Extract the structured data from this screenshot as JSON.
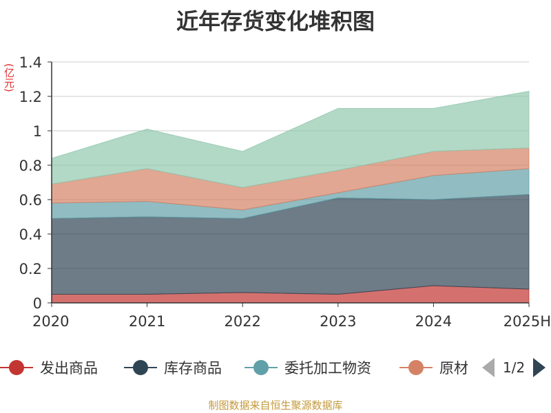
{
  "chart_data": {
    "type": "area",
    "stacked": true,
    "title": "近年存货变化堆积图",
    "unit": "(亿元)",
    "categories": [
      "2020",
      "2021",
      "2022",
      "2023",
      "2024",
      "2025H"
    ],
    "ylim": [
      0,
      1.4
    ],
    "yticks": [
      "0",
      "0.2",
      "0.4",
      "0.6",
      "0.8",
      "1",
      "1.2",
      "1.4"
    ],
    "grid": true,
    "series": [
      {
        "name": "发出商品",
        "color": "#c23531",
        "values": [
          0.05,
          0.05,
          0.06,
          0.05,
          0.1,
          0.08
        ]
      },
      {
        "name": "库存商品",
        "color": "#2f4554",
        "values": [
          0.44,
          0.45,
          0.43,
          0.56,
          0.5,
          0.55
        ]
      },
      {
        "name": "委托加工物资",
        "color": "#61a0a8",
        "values": [
          0.09,
          0.09,
          0.05,
          0.03,
          0.14,
          0.15
        ]
      },
      {
        "name": "原材料",
        "color": "#d48265",
        "values": [
          0.11,
          0.19,
          0.13,
          0.13,
          0.14,
          0.12
        ]
      },
      {
        "name": "",
        "color": "#91c7ae",
        "values": [
          0.15,
          0.23,
          0.21,
          0.36,
          0.25,
          0.33
        ]
      }
    ]
  },
  "legend": {
    "items": [
      {
        "label": "发出商品",
        "color": "#c23531"
      },
      {
        "label": "库存商品",
        "color": "#2f4554"
      },
      {
        "label": "委托加工物资",
        "color": "#61a0a8"
      },
      {
        "label": "原材",
        "color": "#d48265"
      }
    ],
    "page": "1/2"
  },
  "source": "制图数据来自恒生聚源数据库"
}
